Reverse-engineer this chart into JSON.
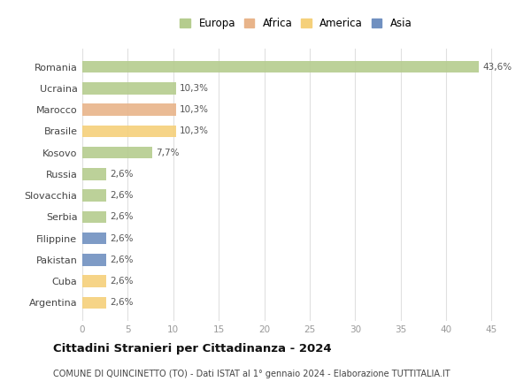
{
  "countries": [
    "Romania",
    "Ucraina",
    "Marocco",
    "Brasile",
    "Kosovo",
    "Russia",
    "Slovacchia",
    "Serbia",
    "Filippine",
    "Pakistan",
    "Cuba",
    "Argentina"
  ],
  "values": [
    43.6,
    10.3,
    10.3,
    10.3,
    7.7,
    2.6,
    2.6,
    2.6,
    2.6,
    2.6,
    2.6,
    2.6
  ],
  "labels": [
    "43,6%",
    "10,3%",
    "10,3%",
    "10,3%",
    "7,7%",
    "2,6%",
    "2,6%",
    "2,6%",
    "2,6%",
    "2,6%",
    "2,6%",
    "2,6%"
  ],
  "colors": [
    "#b5cc8e",
    "#b5cc8e",
    "#e8b48a",
    "#f5d07a",
    "#b5cc8e",
    "#b5cc8e",
    "#b5cc8e",
    "#b5cc8e",
    "#7090c0",
    "#7090c0",
    "#f5d07a",
    "#f5d07a"
  ],
  "legend_labels": [
    "Europa",
    "Africa",
    "America",
    "Asia"
  ],
  "legend_colors": [
    "#b5cc8e",
    "#e8b48a",
    "#f5d07a",
    "#7090c0"
  ],
  "xlim": [
    0,
    47
  ],
  "xticks": [
    0,
    5,
    10,
    15,
    20,
    25,
    30,
    35,
    40,
    45
  ],
  "title": "Cittadini Stranieri per Cittadinanza - 2024",
  "subtitle": "COMUNE DI QUINCINETTO (TO) - Dati ISTAT al 1° gennaio 2024 - Elaborazione TUTTITALIA.IT",
  "bg_color": "#ffffff",
  "bar_height": 0.55,
  "grid_color": "#e0e0e0"
}
